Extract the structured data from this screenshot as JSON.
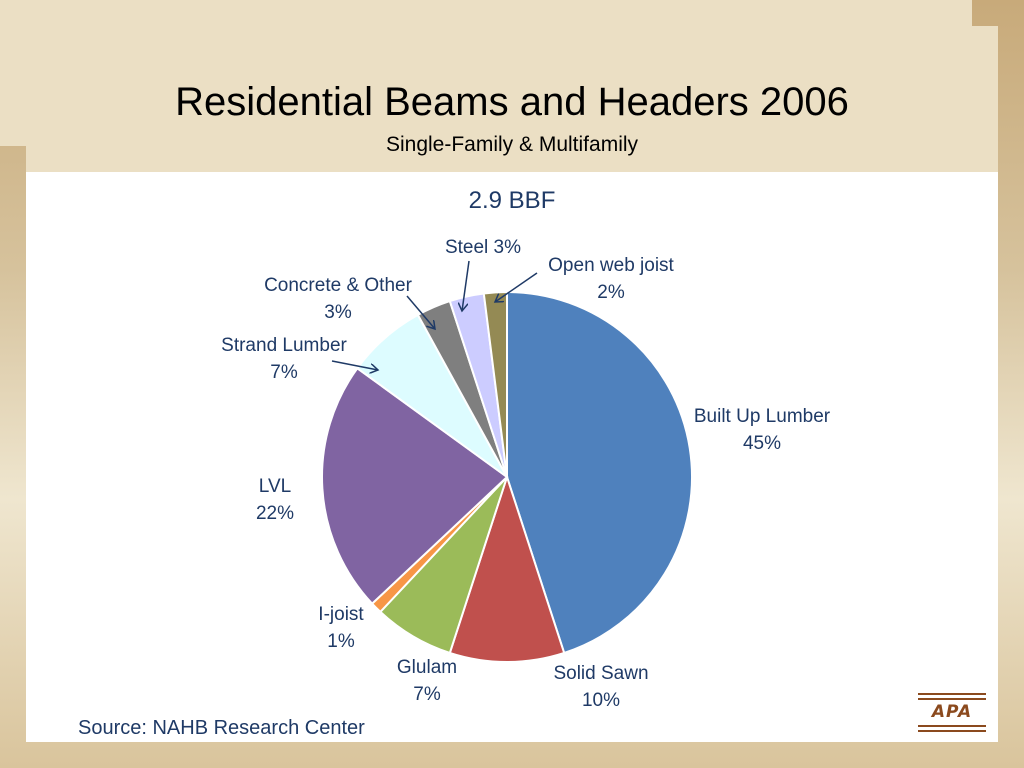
{
  "slide": {
    "title": "Residential Beams and Headers 2006",
    "subtitle": "Single-Family & Multifamily",
    "source": "Source:  NAHB Research Center",
    "logo_text": "APA"
  },
  "chart_data": {
    "type": "pie",
    "title": "2.9 BBF",
    "start_angle_deg": 0,
    "direction": "clockwise",
    "slices": [
      {
        "name": "Built Up Lumber",
        "value": 45,
        "label": "45%",
        "color": "#4f81bd"
      },
      {
        "name": "Solid Sawn",
        "value": 10,
        "label": "10%",
        "color": "#c0504d"
      },
      {
        "name": "Glulam",
        "value": 7,
        "label": "7%",
        "color": "#9bbb59"
      },
      {
        "name": "I-joist",
        "value": 1,
        "label": "1%",
        "color": "#f79646"
      },
      {
        "name": "LVL",
        "value": 22,
        "label": "22%",
        "color": "#8064a2"
      },
      {
        "name": "Strand Lumber",
        "value": 7,
        "label": "7%",
        "color": "#ddfcff"
      },
      {
        "name": "Concrete & Other",
        "value": 3,
        "label": "3%",
        "color": "#7f7f7f"
      },
      {
        "name": "Steel",
        "value": 3,
        "label": "Steel 3%",
        "color": "#ccccff"
      },
      {
        "name": "Open web joist",
        "value": 2,
        "label": "2%",
        "color": "#948a54"
      }
    ]
  }
}
